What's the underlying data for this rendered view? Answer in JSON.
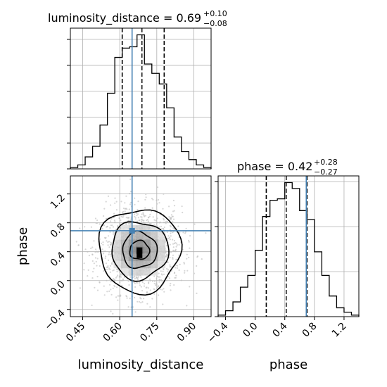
{
  "chart_data": [
    {
      "type": "histogram",
      "panel": "luminosity_distance marginal",
      "title": {
        "text": "luminosity_distance = 0.69",
        "plus": "+0.10",
        "minus": "−0.08"
      },
      "xlim": [
        0.4,
        0.97
      ],
      "bin_edges": [
        0.4,
        0.43,
        0.46,
        0.49,
        0.52,
        0.55,
        0.58,
        0.61,
        0.64,
        0.67,
        0.7,
        0.73,
        0.76,
        0.79,
        0.82,
        0.85,
        0.88,
        0.91,
        0.94,
        0.97
      ],
      "counts": [
        1,
        3,
        9,
        17,
        33,
        57,
        84,
        91,
        92,
        101,
        79,
        72,
        64,
        46,
        24,
        13,
        7,
        3,
        1
      ],
      "quantiles": [
        0.61,
        0.69,
        0.78
      ],
      "median": 0.69,
      "truth": 0.65,
      "grid": true
    },
    {
      "type": "histogram",
      "panel": "phase marginal",
      "title": {
        "text": "phase = 0.42",
        "plus": "+0.28",
        "minus": "−0.27"
      },
      "xlim": [
        -0.5,
        1.4
      ],
      "xticks": [
        "−0.4",
        "0.0",
        "0.4",
        "0.8",
        "1.2"
      ],
      "xtick_values": [
        -0.4,
        0.0,
        0.4,
        0.8,
        1.2
      ],
      "xlabel": "phase",
      "bin_edges": [
        -0.5,
        -0.4,
        -0.3,
        -0.2,
        -0.1,
        0.0,
        0.1,
        0.2,
        0.3,
        0.4,
        0.5,
        0.6,
        0.7,
        0.8,
        0.9,
        1.0,
        1.1,
        1.2,
        1.3,
        1.4
      ],
      "counts": [
        1,
        4,
        10,
        20,
        28,
        45,
        68,
        79,
        80,
        91,
        87,
        72,
        66,
        44,
        28,
        14,
        6,
        3,
        1
      ],
      "quantiles": [
        0.15,
        0.42,
        0.7
      ],
      "median": 0.42,
      "truth": 0.69,
      "grid": true
    },
    {
      "type": "scatter-contour",
      "panel": "luminosity_distance vs phase",
      "xlabel": "luminosity_distance",
      "ylabel": "phase",
      "xlim": [
        0.4,
        0.97
      ],
      "ylim": [
        -0.5,
        1.45
      ],
      "xticks": [
        "0.45",
        "0.60",
        "0.75",
        "0.90"
      ],
      "xtick_values": [
        0.45,
        0.6,
        0.75,
        0.9
      ],
      "yticks": [
        "−0.4",
        "0.0",
        "0.4",
        "0.8",
        "1.2"
      ],
      "ytick_values": [
        -0.4,
        0.0,
        0.4,
        0.8,
        1.2
      ],
      "center": {
        "x": 0.68,
        "y": 0.42
      },
      "contours": [
        {
          "level": "outer",
          "rx": 0.165,
          "ry": 0.58
        },
        {
          "level": "middle",
          "rx": 0.115,
          "ry": 0.4
        },
        {
          "level": "inner",
          "rx": 0.07,
          "ry": 0.25
        },
        {
          "level": "core",
          "rx": 0.04,
          "ry": 0.13
        }
      ],
      "truth": {
        "x": 0.65,
        "y": 0.69
      },
      "grid": true
    }
  ],
  "colors": {
    "truth": "#4682b4",
    "line": "#000000",
    "grid": "#b0b0b0",
    "scatter": "#bdbdbd"
  }
}
